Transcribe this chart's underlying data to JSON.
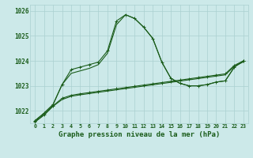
{
  "title": "Graphe pression niveau de la mer (hPa)",
  "background_color": "#cce9e9",
  "grid_color": "#aad0d0",
  "line_color": "#1a5c1a",
  "x_values": [
    0,
    1,
    2,
    3,
    4,
    5,
    6,
    7,
    8,
    9,
    10,
    11,
    12,
    13,
    14,
    15,
    16,
    17,
    18,
    19,
    20,
    21,
    22,
    23
  ],
  "series1": [
    1021.6,
    1021.9,
    1022.25,
    1023.05,
    1023.65,
    1023.75,
    1023.85,
    1023.95,
    1024.4,
    1025.6,
    1025.85,
    1025.7,
    1025.35,
    1024.9,
    1023.95,
    1023.3,
    1023.1,
    1023.0,
    1023.0,
    1023.05,
    1023.15,
    1023.2,
    1023.75,
    1024.0
  ],
  "series2": [
    1021.6,
    1021.9,
    1022.25,
    1023.05,
    1023.5,
    1023.6,
    1023.7,
    1023.85,
    1024.3,
    1025.45,
    1025.85,
    1025.7,
    1025.35,
    1024.9,
    1023.95,
    1023.3,
    1023.1,
    1023.0,
    1023.0,
    1023.05,
    1023.15,
    1023.2,
    1023.75,
    1024.0
  ],
  "series3": [
    1021.55,
    1021.85,
    1022.2,
    1022.5,
    1022.62,
    1022.68,
    1022.73,
    1022.78,
    1022.83,
    1022.88,
    1022.93,
    1022.98,
    1023.03,
    1023.08,
    1023.13,
    1023.18,
    1023.23,
    1023.28,
    1023.33,
    1023.38,
    1023.43,
    1023.48,
    1023.82,
    1024.0
  ],
  "series4": [
    1021.55,
    1021.82,
    1022.18,
    1022.45,
    1022.58,
    1022.64,
    1022.69,
    1022.74,
    1022.79,
    1022.84,
    1022.89,
    1022.94,
    1022.99,
    1023.04,
    1023.09,
    1023.14,
    1023.19,
    1023.24,
    1023.29,
    1023.34,
    1023.39,
    1023.44,
    1023.78,
    1023.96
  ],
  "ylim": [
    1021.5,
    1026.25
  ],
  "yticks": [
    1022,
    1023,
    1024,
    1025,
    1026
  ],
  "xlim_left": -0.5,
  "xlim_right": 23.5
}
